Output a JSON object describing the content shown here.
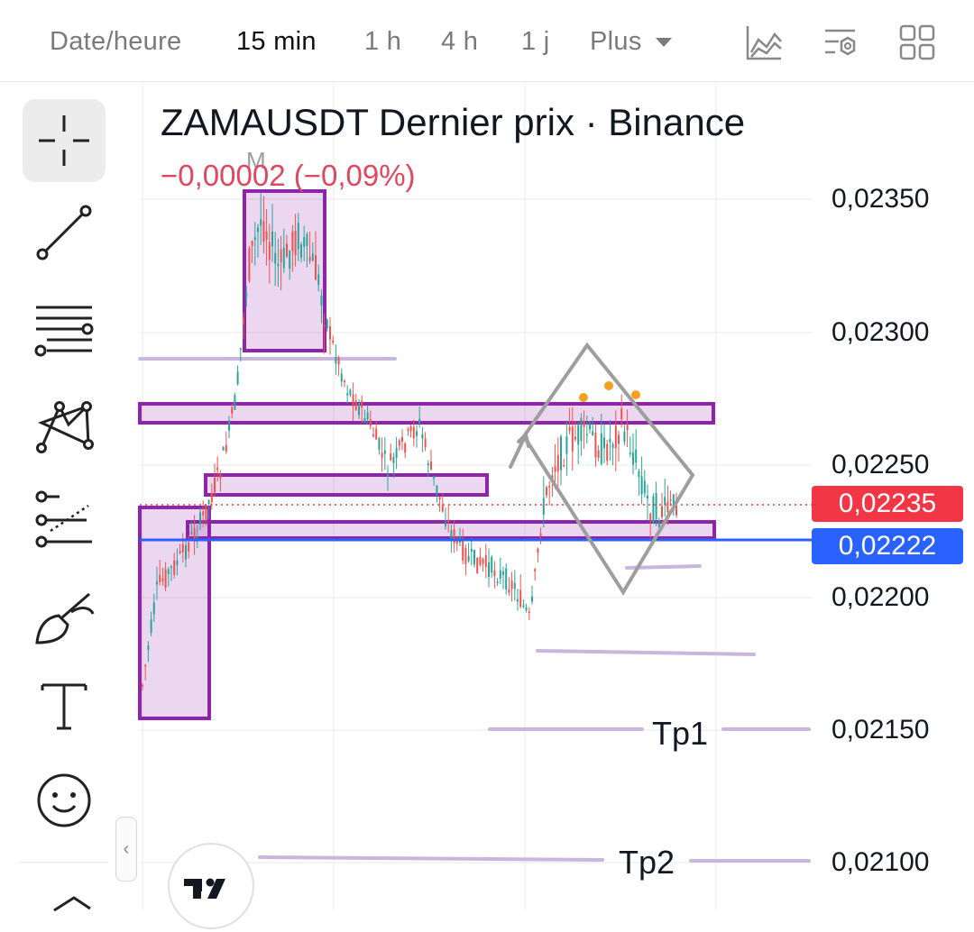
{
  "header": {
    "timeframes": [
      {
        "label": "Date/heure",
        "active": false
      },
      {
        "label": "15 min",
        "active": true
      },
      {
        "label": "1 h",
        "active": false
      },
      {
        "label": "4 h",
        "active": false
      },
      {
        "label": "1 j",
        "active": false
      },
      {
        "label": "Plus",
        "active": false
      }
    ],
    "icons": [
      "chart-type-icon",
      "indicators-icon",
      "layout-icon"
    ]
  },
  "toolbar": {
    "tools": [
      "crosshair-icon",
      "trend-line-icon",
      "horizontal-lines-icon",
      "pattern-icon",
      "forecast-icon",
      "brush-icon",
      "text-icon",
      "emoji-icon"
    ],
    "collapse_glyph": "‹"
  },
  "chart": {
    "symbol_title": "ZAMAUSDT Dernier prix · Binance",
    "change": "−0,00002 (−0,09%)",
    "marker_label": "M",
    "y_axis_labels": [
      "0,02350",
      "0,02300",
      "0,02250",
      "0,02200",
      "0,02150",
      "0,02100"
    ],
    "last_price_label": "0,02235",
    "blue_line_label": "0,02222",
    "tp_labels": [
      "Tp1",
      "Tp2"
    ],
    "colors": {
      "up": "#26a69a",
      "down": "#ef5350",
      "zone": "#8e24aa",
      "last_price": "#f23645",
      "blue_line": "#2962ff"
    }
  },
  "chart_data": {
    "type": "candlestick",
    "y_ticks": [
      0.0235,
      0.023,
      0.0225,
      0.022,
      0.0215,
      0.021
    ],
    "last_price": 0.02235,
    "horizontal_line": 0.02222,
    "targets": [
      {
        "name": "Tp1",
        "value": 0.0215
      },
      {
        "name": "Tp2",
        "value": 0.021
      }
    ]
  }
}
